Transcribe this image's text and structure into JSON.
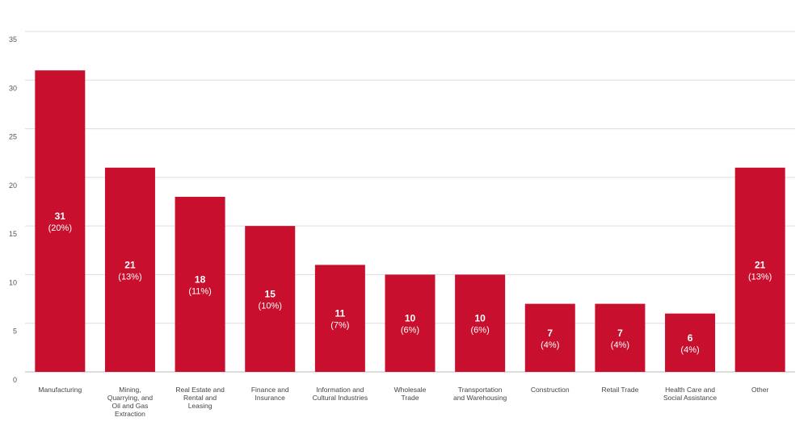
{
  "chart_data": {
    "type": "bar",
    "categories": [
      "Manufacturing",
      "Mining, Quarrying, and Oil and Gas Extraction",
      "Real Estate and Rental and Leasing",
      "Finance and Insurance",
      "Information and Cultural Industries",
      "Wholesale Trade",
      "Transportation and Warehousing",
      "Construction",
      "Retail Trade",
      "Health Care and Social Assistance",
      "Other"
    ],
    "category_lines": [
      [
        "Manufacturing"
      ],
      [
        "Mining,",
        "Quarrying, and",
        "Oil and Gas",
        "Extraction"
      ],
      [
        "Real Estate and",
        "Rental and",
        "Leasing"
      ],
      [
        "Finance and",
        "Insurance"
      ],
      [
        "Information and",
        "Cultural Industries"
      ],
      [
        "Wholesale",
        "Trade"
      ],
      [
        "Transportation",
        "and Warehousing"
      ],
      [
        "Construction"
      ],
      [
        "Retail Trade"
      ],
      [
        "Health Care and",
        "Social Assistance"
      ],
      [
        "Other"
      ]
    ],
    "values": [
      31,
      21,
      18,
      15,
      11,
      10,
      10,
      7,
      7,
      6,
      21
    ],
    "value_labels": [
      "31",
      "21",
      "18",
      "15",
      "11",
      "10",
      "10",
      "7",
      "7",
      "6",
      "21"
    ],
    "percent_labels": [
      "(20%)",
      "(13%)",
      "(11%)",
      "(10%)",
      "(7%)",
      "(6%)",
      "(6%)",
      "(4%)",
      "(4%)",
      "(4%)",
      "(13%)"
    ],
    "yticks": [
      0,
      5,
      10,
      15,
      20,
      25,
      30,
      35
    ],
    "ylim": [
      0,
      35
    ],
    "grid": true,
    "bar_color": "#c8102e",
    "grid_color": "#dddddd",
    "title": "",
    "xlabel": "",
    "ylabel": ""
  }
}
